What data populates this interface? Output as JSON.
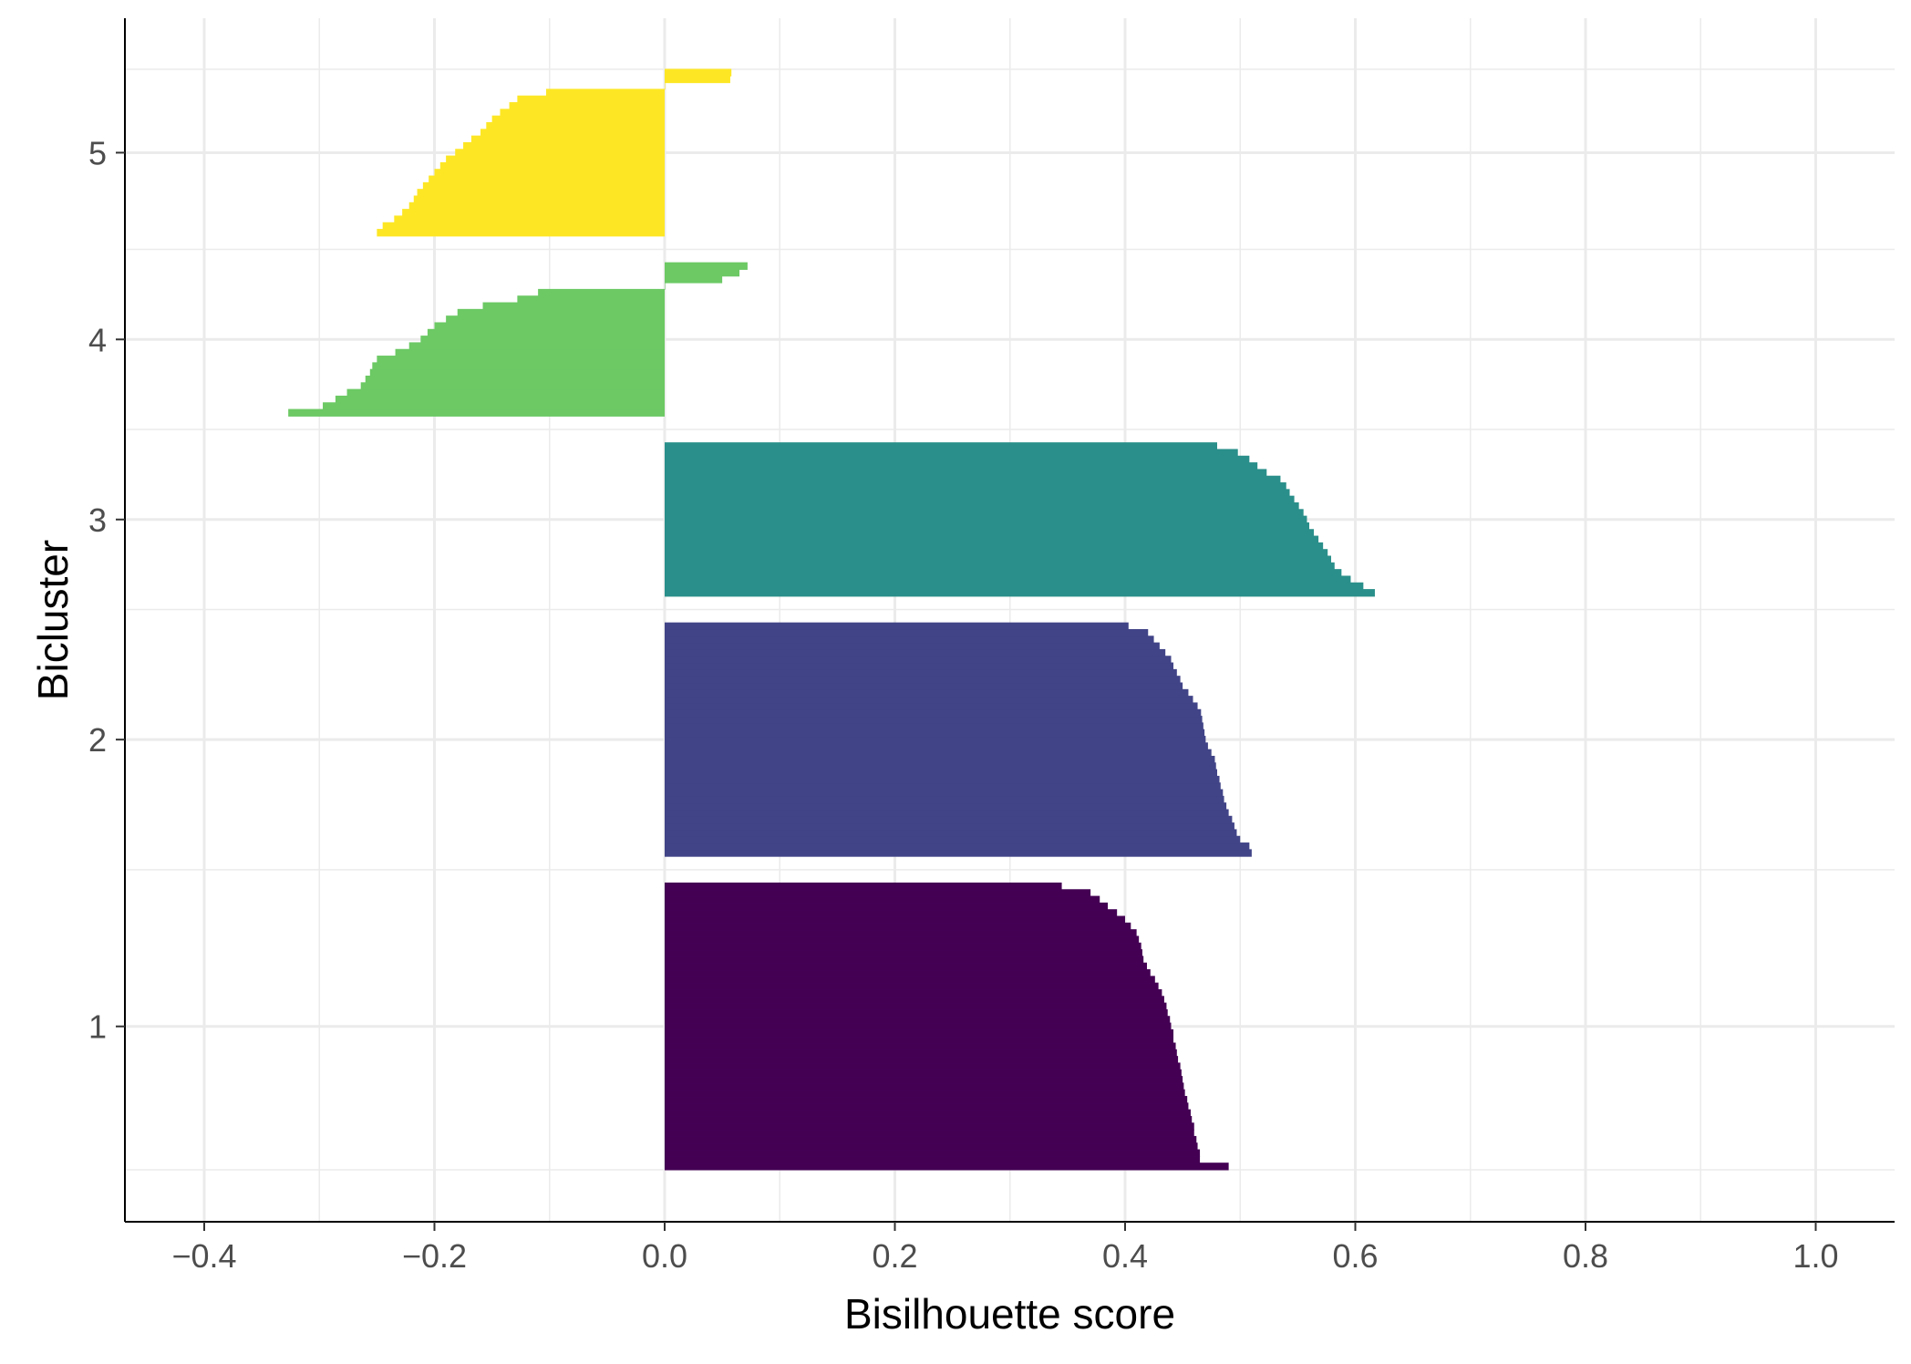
{
  "chart_data": {
    "type": "bar",
    "orientation": "horizontal",
    "title": "",
    "xlabel": "Bisilhouette score",
    "ylabel": "Bicluster",
    "xlim": [
      -0.47,
      1.07
    ],
    "x_ticks": [
      "−0.4",
      "−0.2",
      "0.0",
      "0.2",
      "0.4",
      "0.6",
      "0.8",
      "1.0"
    ],
    "x_tick_values": [
      -0.4,
      -0.2,
      0.0,
      0.2,
      0.4,
      0.6,
      0.8,
      1.0
    ],
    "y_ticks": [
      "1",
      "2",
      "3",
      "4",
      "5"
    ],
    "grid": true,
    "legend": "none",
    "series": [
      {
        "cluster": "1",
        "color": "#440154",
        "values": [
          0.49,
          0.465,
          0.465,
          0.463,
          0.462,
          0.46,
          0.46,
          0.458,
          0.457,
          0.455,
          0.454,
          0.452,
          0.451,
          0.45,
          0.449,
          0.448,
          0.446,
          0.445,
          0.444,
          0.442,
          0.442,
          0.44,
          0.439,
          0.437,
          0.436,
          0.434,
          0.432,
          0.429,
          0.426,
          0.422,
          0.419,
          0.416,
          0.415,
          0.414,
          0.412,
          0.41,
          0.405,
          0.4,
          0.393,
          0.385,
          0.378,
          0.37,
          0.345
        ]
      },
      {
        "cluster": "2",
        "color": "#414487",
        "values": [
          0.51,
          0.508,
          0.5,
          0.497,
          0.495,
          0.493,
          0.49,
          0.488,
          0.486,
          0.485,
          0.483,
          0.482,
          0.48,
          0.479,
          0.478,
          0.475,
          0.472,
          0.47,
          0.469,
          0.468,
          0.467,
          0.466,
          0.463,
          0.459,
          0.455,
          0.45,
          0.448,
          0.445,
          0.442,
          0.44,
          0.435,
          0.43,
          0.425,
          0.42,
          0.403
        ]
      },
      {
        "cluster": "3",
        "color": "#2a8f8a",
        "values": [
          0.617,
          0.607,
          0.596,
          0.588,
          0.582,
          0.579,
          0.576,
          0.572,
          0.568,
          0.564,
          0.56,
          0.558,
          0.555,
          0.551,
          0.547,
          0.543,
          0.54,
          0.535,
          0.523,
          0.515,
          0.508,
          0.498,
          0.48
        ]
      },
      {
        "cluster": "4",
        "color": "#6cc964",
        "values": [
          -0.327,
          -0.297,
          -0.286,
          -0.276,
          -0.264,
          -0.26,
          -0.256,
          -0.254,
          -0.25,
          -0.234,
          -0.222,
          -0.212,
          -0.206,
          -0.2,
          -0.19,
          -0.18,
          -0.158,
          -0.128,
          -0.11,
          0.0,
          0.05,
          0.065,
          0.072
        ]
      },
      {
        "cluster": "5",
        "color": "#fde725",
        "values": [
          -0.25,
          -0.245,
          -0.235,
          -0.228,
          -0.222,
          -0.218,
          -0.215,
          -0.21,
          -0.205,
          -0.2,
          -0.195,
          -0.19,
          -0.182,
          -0.175,
          -0.168,
          -0.16,
          -0.155,
          -0.15,
          -0.143,
          -0.135,
          -0.128,
          -0.103,
          0.0,
          0.057,
          0.058
        ]
      }
    ]
  }
}
